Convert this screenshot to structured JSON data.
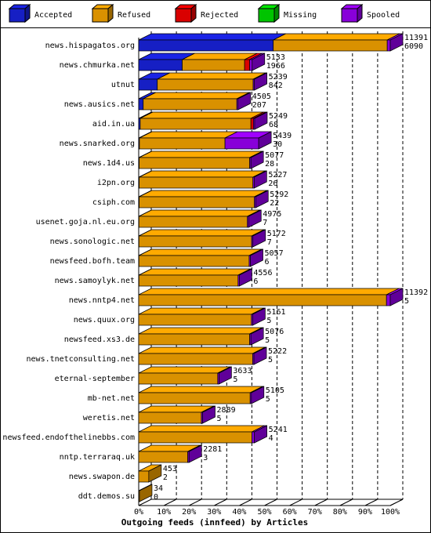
{
  "chart_data": {
    "type": "bar3d-stacked-horizontal",
    "xlabel": "Outgoing feeds (innfeed) by Articles",
    "categories": [
      "news.hispagatos.org",
      "news.chmurka.net",
      "utnut",
      "news.ausics.net",
      "aid.in.ua",
      "news.snarked.org",
      "news.1d4.us",
      "i2pn.org",
      "csiph.com",
      "usenet.goja.nl.eu.org",
      "news.sonologic.net",
      "newsfeed.bofh.team",
      "news.samoylyk.net",
      "news.nntp4.net",
      "news.quux.org",
      "newsfeed.xs3.de",
      "news.tnetconsulting.net",
      "eternal-september",
      "mb-net.net",
      "weretis.net",
      "newsfeed.endofthelinebbs.com",
      "nntp.terraraq.uk",
      "news.swapon.de",
      "ddt.demos.su"
    ],
    "offered": [
      11391,
      5133,
      5239,
      4505,
      5249,
      5439,
      5077,
      5227,
      5292,
      4975,
      5172,
      5057,
      4556,
      11392,
      5161,
      5076,
      5222,
      3633,
      5105,
      2889,
      5241,
      2281,
      453,
      34
    ],
    "accepted": [
      6090,
      1966,
      842,
      207,
      68,
      30,
      28,
      26,
      22,
      7,
      7,
      6,
      6,
      5,
      5,
      5,
      5,
      5,
      5,
      5,
      4,
      3,
      2,
      0
    ],
    "series": [
      {
        "name": "Accepted",
        "color": "#1a24e6",
        "values": [
          53.5,
          17.3,
          7.4,
          1.8,
          0.6,
          0.3,
          0.2,
          0.2,
          0.2,
          0.1,
          0.1,
          0.1,
          0.1,
          0,
          0,
          0,
          0,
          0,
          0,
          0,
          0,
          0,
          0,
          0
        ]
      },
      {
        "name": "Refused",
        "color": "#ffaa00",
        "values": [
          45.3,
          24.8,
          38.1,
          37.2,
          44.0,
          34.0,
          43.9,
          45.2,
          45.8,
          43.1,
          44.8,
          43.8,
          39.4,
          98.5,
          44.8,
          44.1,
          45.3,
          31.4,
          44.3,
          24.9,
          45.0,
          19.5,
          4.0,
          0.3
        ]
      },
      {
        "name": "Rejected",
        "color": "#ff0000",
        "values": [
          0,
          2.0,
          0,
          0,
          1.0,
          0,
          0,
          0,
          0,
          0,
          0,
          0,
          0,
          0,
          0,
          0,
          0,
          0,
          0,
          0,
          0,
          0,
          0,
          0
        ]
      },
      {
        "name": "Missing",
        "color": "#00e600",
        "values": [
          0,
          0,
          0,
          0,
          0,
          0,
          0,
          0,
          0,
          0,
          0,
          0,
          0,
          0,
          0,
          0,
          0,
          0,
          0,
          0,
          0,
          0,
          0,
          0
        ]
      },
      {
        "name": "Spooled",
        "color": "#a000ff",
        "values": [
          1.2,
          1.0,
          0.5,
          0.5,
          0.5,
          13.4,
          0.5,
          0.5,
          0.5,
          0.5,
          0.5,
          0.5,
          0.5,
          1.5,
          0.5,
          0.5,
          0.5,
          0.5,
          0.5,
          0.5,
          1.0,
          0.5,
          0,
          0
        ]
      }
    ],
    "xlim": [
      0,
      100
    ],
    "xticks": [
      {
        "value": 0,
        "label": "0%"
      },
      {
        "value": 10,
        "label": "10%"
      },
      {
        "value": 20,
        "label": "20%"
      },
      {
        "value": 30,
        "label": "30%"
      },
      {
        "value": 40,
        "label": "40%"
      },
      {
        "value": 50,
        "label": "50%"
      },
      {
        "value": 60,
        "label": "60%"
      },
      {
        "value": 70,
        "label": "70%"
      },
      {
        "value": 80,
        "label": "80%"
      },
      {
        "value": 90,
        "label": "90%"
      },
      {
        "value": 100,
        "label": "100%"
      }
    ],
    "grid": true
  }
}
